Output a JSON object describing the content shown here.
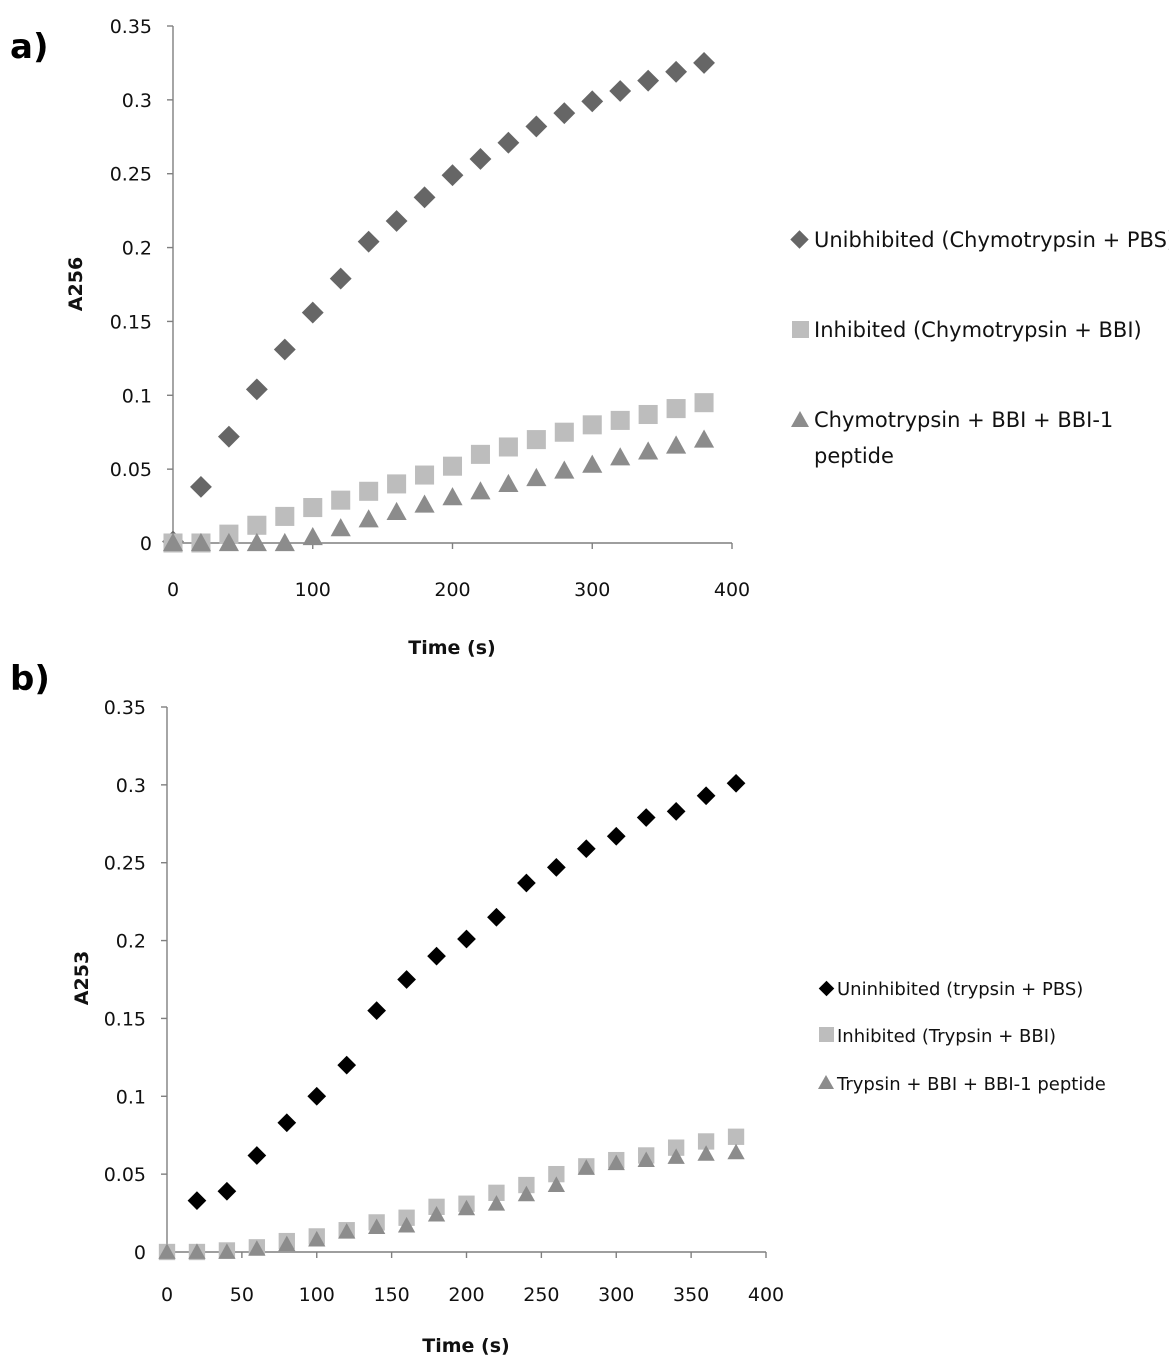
{
  "chart_data": [
    {
      "panel_label": "a)",
      "type": "scatter",
      "xlabel": "Time (s)",
      "ylabel": "A256",
      "xlim": [
        0,
        400
      ],
      "ylim": [
        0,
        0.35
      ],
      "xticks": [
        "0",
        "100",
        "200",
        "300",
        "400"
      ],
      "yticks": [
        "0",
        "0.05",
        "0.1",
        "0.15",
        "0.2",
        "0.25",
        "0.3",
        "0.35"
      ],
      "grid": false,
      "legend_position": "right",
      "series": [
        {
          "name": "Unibhibited (Chymotrypsin + PBS)",
          "marker": "diamond",
          "color": "#666666",
          "x": [
            0,
            20,
            40,
            60,
            80,
            100,
            120,
            140,
            160,
            180,
            200,
            220,
            240,
            260,
            280,
            300,
            320,
            340,
            360,
            380
          ],
          "y": [
            0.001,
            0.038,
            0.072,
            0.104,
            0.131,
            0.156,
            0.179,
            0.204,
            0.218,
            0.234,
            0.249,
            0.26,
            0.271,
            0.282,
            0.291,
            0.299,
            0.306,
            0.313,
            0.319,
            0.325
          ]
        },
        {
          "name": "Inhibited (Chymotrypsin + BBI)",
          "marker": "square",
          "color": "#bdbdbd",
          "x": [
            0,
            20,
            40,
            60,
            80,
            100,
            120,
            140,
            160,
            180,
            200,
            220,
            240,
            260,
            280,
            300,
            320,
            340,
            360,
            380
          ],
          "y": [
            0.0,
            0.0,
            0.006,
            0.012,
            0.018,
            0.024,
            0.029,
            0.035,
            0.04,
            0.046,
            0.052,
            0.06,
            0.065,
            0.07,
            0.075,
            0.08,
            0.083,
            0.087,
            0.091,
            0.095
          ]
        },
        {
          "name": "Chymotrypsin + BBI + BBI-1 peptide",
          "marker": "triangle",
          "color": "#8c8c8c",
          "x": [
            0,
            20,
            40,
            60,
            80,
            100,
            120,
            140,
            160,
            180,
            200,
            220,
            240,
            260,
            280,
            300,
            320,
            340,
            360,
            380
          ],
          "y": [
            0.0,
            0.0,
            0.0,
            0.0,
            0.0,
            0.004,
            0.01,
            0.016,
            0.021,
            0.026,
            0.031,
            0.035,
            0.04,
            0.044,
            0.049,
            0.053,
            0.058,
            0.062,
            0.066,
            0.07
          ]
        }
      ]
    },
    {
      "panel_label": "b)",
      "type": "scatter",
      "xlabel": "Time (s)",
      "ylabel": "A253",
      "xlim": [
        0,
        400
      ],
      "ylim": [
        0,
        0.35
      ],
      "xticks": [
        "0",
        "50",
        "100",
        "150",
        "200",
        "250",
        "300",
        "350",
        "400"
      ],
      "yticks": [
        "0",
        "0.05",
        "0.1",
        "0.15",
        "0.2",
        "0.25",
        "0.3",
        "0.35"
      ],
      "grid": false,
      "legend_position": "right",
      "series": [
        {
          "name": "Uninhibited (trypsin + PBS)",
          "marker": "diamond",
          "color": "#000000",
          "x": [
            20,
            40,
            60,
            80,
            100,
            120,
            140,
            160,
            180,
            200,
            220,
            240,
            260,
            280,
            300,
            320,
            340,
            360,
            380
          ],
          "y": [
            0.033,
            0.039,
            0.062,
            0.083,
            0.1,
            0.12,
            0.155,
            0.175,
            0.19,
            0.201,
            0.215,
            0.237,
            0.247,
            0.259,
            0.267,
            0.279,
            0.283,
            0.293,
            0.301
          ]
        },
        {
          "name": "Inhibited (Trypsin + BBI)",
          "marker": "square",
          "color": "#bdbdbd",
          "x": [
            0,
            20,
            40,
            60,
            80,
            100,
            120,
            140,
            160,
            180,
            200,
            220,
            240,
            260,
            280,
            300,
            320,
            340,
            360,
            380
          ],
          "y": [
            0.0,
            0.0,
            0.001,
            0.003,
            0.007,
            0.01,
            0.014,
            0.019,
            0.022,
            0.029,
            0.031,
            0.038,
            0.043,
            0.05,
            0.055,
            0.059,
            0.062,
            0.067,
            0.071,
            0.074
          ]
        },
        {
          "name": "Trypsin + BBI + BBI-1 peptide",
          "marker": "triangle",
          "color": "#8c8c8c",
          "x": [
            0,
            20,
            40,
            60,
            80,
            100,
            120,
            140,
            160,
            180,
            200,
            220,
            240,
            260,
            280,
            300,
            320,
            340,
            360,
            380
          ],
          "y": [
            0.0,
            0.0,
            0.0,
            0.002,
            0.005,
            0.008,
            0.013,
            0.016,
            0.017,
            0.024,
            0.028,
            0.031,
            0.037,
            0.043,
            0.054,
            0.057,
            0.059,
            0.061,
            0.063,
            0.064
          ]
        }
      ]
    }
  ]
}
